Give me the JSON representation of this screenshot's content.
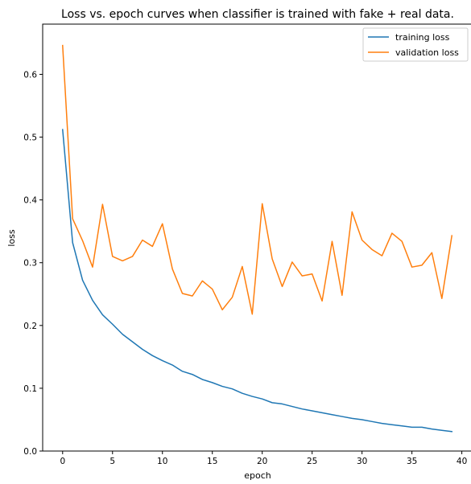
{
  "chart_data": {
    "type": "line",
    "title": "Loss vs. epoch curves when classifier is trained with fake + real data.",
    "xlabel": "epoch",
    "ylabel": "loss",
    "xlim": [
      -2,
      41
    ],
    "ylim": [
      0,
      0.68
    ],
    "xticks": [
      0,
      5,
      10,
      15,
      20,
      25,
      30,
      35,
      40
    ],
    "xtick_labels": [
      "0",
      "5",
      "10",
      "15",
      "20",
      "25",
      "30",
      "35",
      "40"
    ],
    "yticks": [
      0.0,
      0.1,
      0.2,
      0.3,
      0.4,
      0.5,
      0.6
    ],
    "ytick_labels": [
      "0.0",
      "0.1",
      "0.2",
      "0.3",
      "0.4",
      "0.5",
      "0.6"
    ],
    "grid": false,
    "legend_position": "top-right",
    "x": [
      0,
      1,
      2,
      3,
      4,
      5,
      6,
      7,
      8,
      9,
      10,
      11,
      12,
      13,
      14,
      15,
      16,
      17,
      18,
      19,
      20,
      21,
      22,
      23,
      24,
      25,
      26,
      27,
      28,
      29,
      30,
      31,
      32,
      33,
      34,
      35,
      36,
      37,
      38,
      39
    ],
    "series": [
      {
        "name": "training loss",
        "color": "#1f77b4",
        "values": [
          0.512,
          0.332,
          0.272,
          0.24,
          0.217,
          0.202,
          0.186,
          0.174,
          0.162,
          0.152,
          0.144,
          0.137,
          0.127,
          0.122,
          0.114,
          0.109,
          0.103,
          0.099,
          0.092,
          0.087,
          0.083,
          0.077,
          0.075,
          0.071,
          0.067,
          0.064,
          0.061,
          0.058,
          0.055,
          0.052,
          0.05,
          0.047,
          0.044,
          0.042,
          0.04,
          0.038,
          0.038,
          0.035,
          0.033,
          0.031
        ]
      },
      {
        "name": "validation loss",
        "color": "#ff7f0e",
        "values": [
          0.646,
          0.37,
          0.335,
          0.293,
          0.393,
          0.31,
          0.303,
          0.31,
          0.336,
          0.326,
          0.362,
          0.29,
          0.251,
          0.247,
          0.271,
          0.258,
          0.225,
          0.245,
          0.294,
          0.218,
          0.394,
          0.306,
          0.262,
          0.301,
          0.279,
          0.282,
          0.239,
          0.334,
          0.248,
          0.381,
          0.336,
          0.321,
          0.311,
          0.347,
          0.334,
          0.293,
          0.296,
          0.316,
          0.243,
          0.343
        ]
      }
    ]
  }
}
